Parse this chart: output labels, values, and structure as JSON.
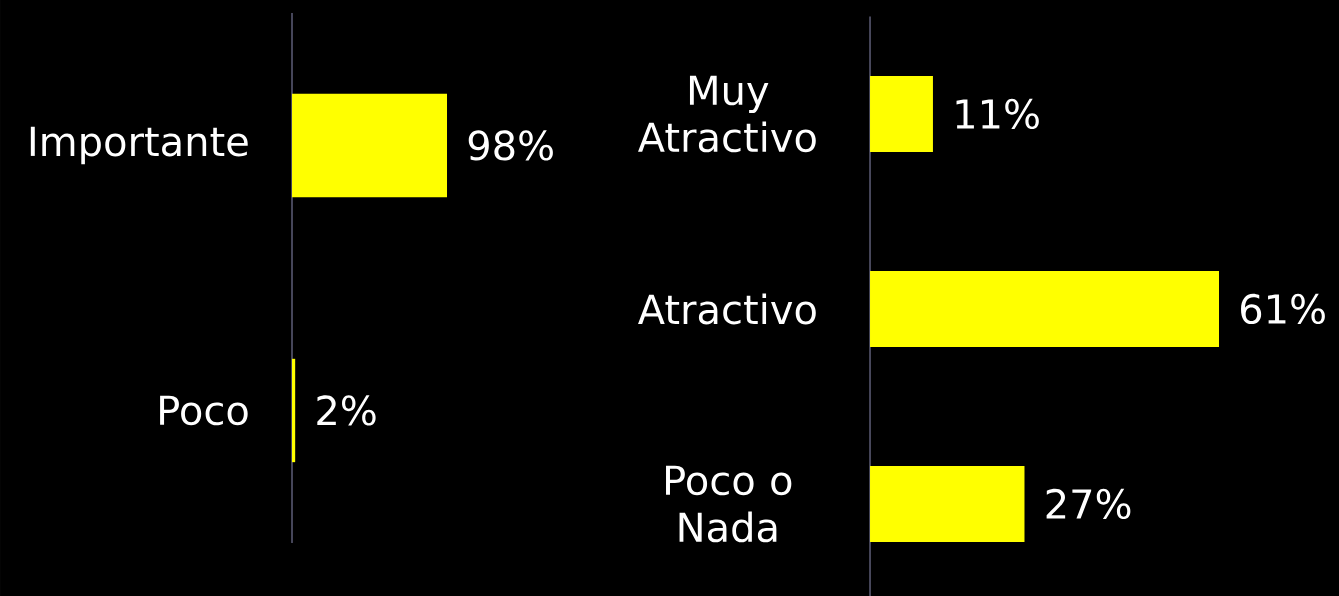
{
  "chart_data": [
    {
      "type": "bar",
      "orientation": "horizontal",
      "categories": [
        "Importante",
        "Poco"
      ],
      "values": [
        98,
        2
      ],
      "value_labels": [
        "98%",
        "2%"
      ],
      "color": "#ffff00",
      "tick_labels": "y"
    },
    {
      "type": "bar",
      "orientation": "horizontal",
      "categories": [
        "Muy Atractivo",
        "Atractivo",
        "Poco o Nada"
      ],
      "values": [
        11,
        61,
        27
      ],
      "value_labels": [
        "11%",
        "61%",
        "27%"
      ],
      "color": "#ffff00",
      "tick_labels": "y"
    }
  ]
}
